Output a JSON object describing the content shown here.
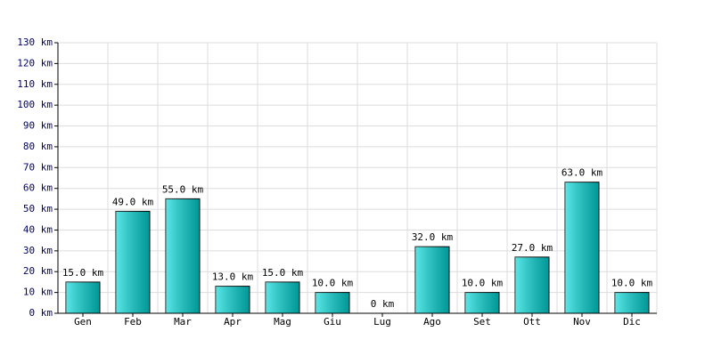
{
  "chart_data": {
    "type": "bar",
    "categories": [
      "Gen",
      "Feb",
      "Mar",
      "Apr",
      "Mag",
      "Giu",
      "Lug",
      "Ago",
      "Set",
      "Ott",
      "Nov",
      "Dic"
    ],
    "values": [
      15,
      49,
      55,
      13,
      15,
      10,
      0,
      32,
      10,
      27,
      63,
      10
    ],
    "value_labels": [
      "15.0 km",
      "49.0 km",
      "55.0 km",
      "13.0 km",
      "15.0 km",
      "10.0 km",
      "0 km",
      "32.0 km",
      "10.0 km",
      "27.0 km",
      "63.0 km",
      "10.0 km"
    ],
    "color": "#00d8d8",
    "ylim": [
      0,
      130
    ],
    "yticks": [
      {
        "value": 0,
        "label": "0 km"
      },
      {
        "value": 10,
        "label": "10 km"
      },
      {
        "value": 20,
        "label": "20 km"
      },
      {
        "value": 30,
        "label": "30 km"
      },
      {
        "value": 40,
        "label": "40 km"
      },
      {
        "value": 50,
        "label": "50 km"
      },
      {
        "value": 60,
        "label": "60 km"
      },
      {
        "value": 70,
        "label": "70 km"
      },
      {
        "value": 80,
        "label": "80 km"
      },
      {
        "value": 90,
        "label": "90 km"
      },
      {
        "value": 100,
        "label": "100 km"
      },
      {
        "value": 110,
        "label": "110 km"
      },
      {
        "value": 120,
        "label": "120 km"
      },
      {
        "value": 130,
        "label": "130 km"
      }
    ],
    "grid": true
  }
}
